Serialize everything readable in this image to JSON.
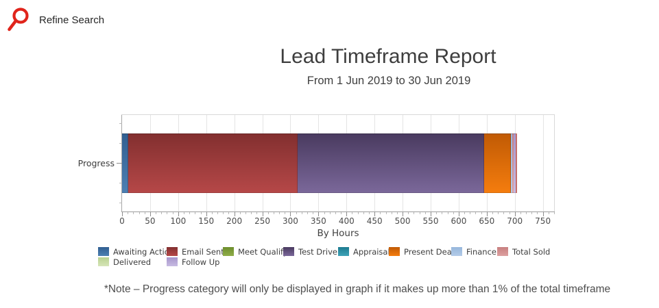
{
  "header": {
    "refine_search_label": "Refine Search",
    "search_icon_color": "#e0241b"
  },
  "report": {
    "title": "Lead Timeframe Report",
    "subtitle": "From 1 Jun 2019 to 30 Jun 2019",
    "note": "*Note – Progress category will only be displayed in graph if it makes up more than 1% of the total timeframe"
  },
  "chart_data": {
    "type": "bar",
    "orientation": "horizontal",
    "stacked": true,
    "title": "Lead Timeframe Report",
    "subtitle": "From 1 Jun 2019 to 30 Jun 2019",
    "categories": [
      "Progress"
    ],
    "xlabel": "By Hours",
    "xlim": [
      0,
      770
    ],
    "xticks": [
      0,
      50,
      100,
      150,
      200,
      250,
      300,
      350,
      400,
      450,
      500,
      550,
      600,
      650,
      700,
      750
    ],
    "xtick_step": 50,
    "minor_tick_step": 10,
    "grid": true,
    "legend_position": "bottom",
    "series": [
      {
        "name": "Awaiting Action",
        "hours": 11,
        "color_top": "#315f91",
        "color_bottom": "#4d80b3"
      },
      {
        "name": "Email Sent",
        "hours": 302,
        "color_top": "#822f2f",
        "color_bottom": "#b64848"
      },
      {
        "name": "Meet Qualify",
        "hours": 0,
        "color_top": "#6d8e2d",
        "color_bottom": "#90ad49"
      },
      {
        "name": "Test Drive",
        "hours": 332,
        "color_top": "#493a5f",
        "color_bottom": "#7b689a"
      },
      {
        "name": "Appraisal",
        "hours": 0,
        "color_top": "#1d7b90",
        "color_bottom": "#3ea3b8"
      },
      {
        "name": "Present Deal",
        "hours": 48,
        "color_top": "#c05a04",
        "color_bottom": "#f57d0e"
      },
      {
        "name": "Finance",
        "hours": 2,
        "color_top": "#97b7dc",
        "color_bottom": "#b3cbe8"
      },
      {
        "name": "Total Sold",
        "hours": 3,
        "color_top": "#c77f7f",
        "color_bottom": "#dda1a1"
      },
      {
        "name": "Delivered",
        "hours": 0,
        "color_top": "#b9d191",
        "color_bottom": "#d6e5b8"
      },
      {
        "name": "Follow Up",
        "hours": 4,
        "color_top": "#a795cb",
        "color_bottom": "#c7bbe2"
      }
    ],
    "legend_rows": [
      [
        0,
        1,
        2,
        3,
        4,
        5,
        6,
        7
      ],
      [
        8,
        9
      ]
    ]
  }
}
